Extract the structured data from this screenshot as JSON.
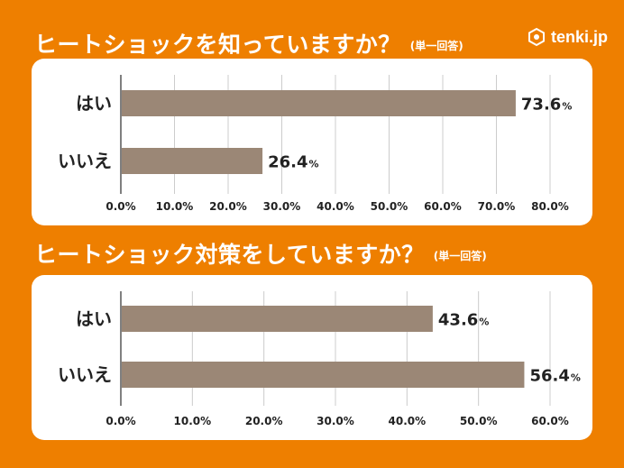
{
  "logo": {
    "text": "tenki.jp"
  },
  "charts": [
    {
      "title": "ヒートショックを知っていますか？",
      "note": "(単一回答)"
    },
    {
      "title": "ヒートショック対策をしていますか？",
      "note": "(単一回答)"
    }
  ],
  "chart_data": [
    {
      "type": "bar",
      "orientation": "horizontal",
      "title": "ヒートショックを知っていますか？",
      "subtitle": "(単一回答)",
      "categories": [
        "はい",
        "いいえ"
      ],
      "values": [
        73.6,
        26.4
      ],
      "value_labels": [
        "73.6",
        "26.4"
      ],
      "value_unit": "%",
      "xlim": [
        0,
        80
      ],
      "x_ticks": [
        "0.0%",
        "10.0%",
        "20.0%",
        "30.0%",
        "40.0%",
        "50.0%",
        "60.0%",
        "70.0%",
        "80.0%"
      ],
      "grid": true,
      "bar_color": "#9b8776"
    },
    {
      "type": "bar",
      "orientation": "horizontal",
      "title": "ヒートショック対策をしていますか？",
      "subtitle": "(単一回答)",
      "categories": [
        "はい",
        "いいえ"
      ],
      "values": [
        43.6,
        56.4
      ],
      "value_labels": [
        "43.6",
        "56.4"
      ],
      "value_unit": "%",
      "xlim": [
        0,
        60
      ],
      "x_ticks": [
        "0.0%",
        "10.0%",
        "20.0%",
        "30.0%",
        "40.0%",
        "50.0%",
        "60.0%"
      ],
      "grid": true,
      "bar_color": "#9b8776"
    }
  ]
}
